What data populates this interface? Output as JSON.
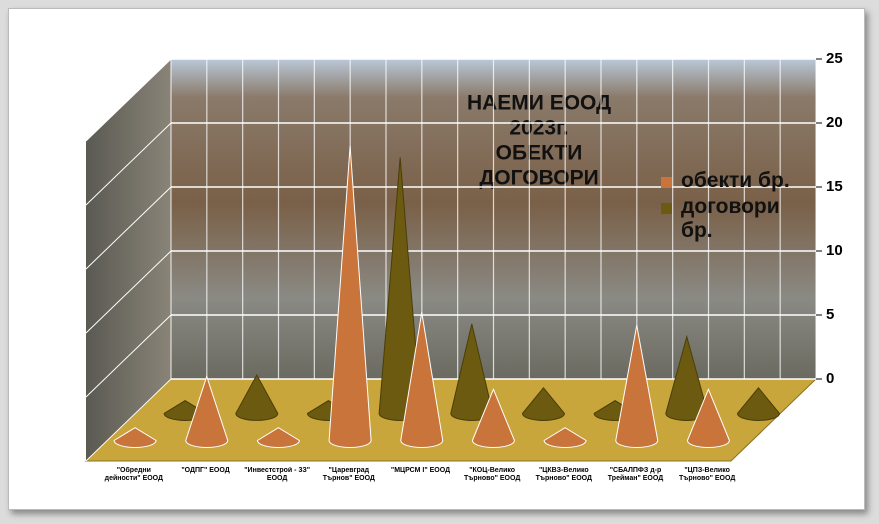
{
  "chart_data": {
    "type": "cone3d",
    "title": [
      "НАЕМИ ЕООД",
      "2023г.",
      "ОБЕКТИ",
      "ДОГОВОРИ"
    ],
    "categories": [
      "\"Обредни дейности\" ЕООД",
      "\"ОДПГ\" ЕООД",
      "\"Инвестстрой - 3З\" ЕООД",
      "\"Царевград Търнов\" ЕООД",
      "\"МЦРСМ I\" ЕООД",
      "\"КОЦ-Велико Търново\" ЕООД",
      "\"ЦКВЗ-Велико Търново\" ЕООД",
      "\"СБАЛПФЗ д-р Трейман\" ЕООД",
      "\"ЦПЗ-Велико Търново\" ЕООД"
    ],
    "series": [
      {
        "name": "обекти бр.",
        "color": "#c8743a",
        "values": [
          1,
          5,
          1,
          23,
          10,
          4,
          1,
          9,
          4
        ]
      },
      {
        "name": "договори бр.",
        "color": "#6b5a10",
        "values": [
          1,
          3,
          1,
          20,
          7,
          2,
          1,
          6,
          2
        ]
      }
    ],
    "ylim": [
      0,
      25
    ],
    "yticks": [
      0,
      5,
      10,
      15,
      20,
      25
    ],
    "grid": true
  }
}
